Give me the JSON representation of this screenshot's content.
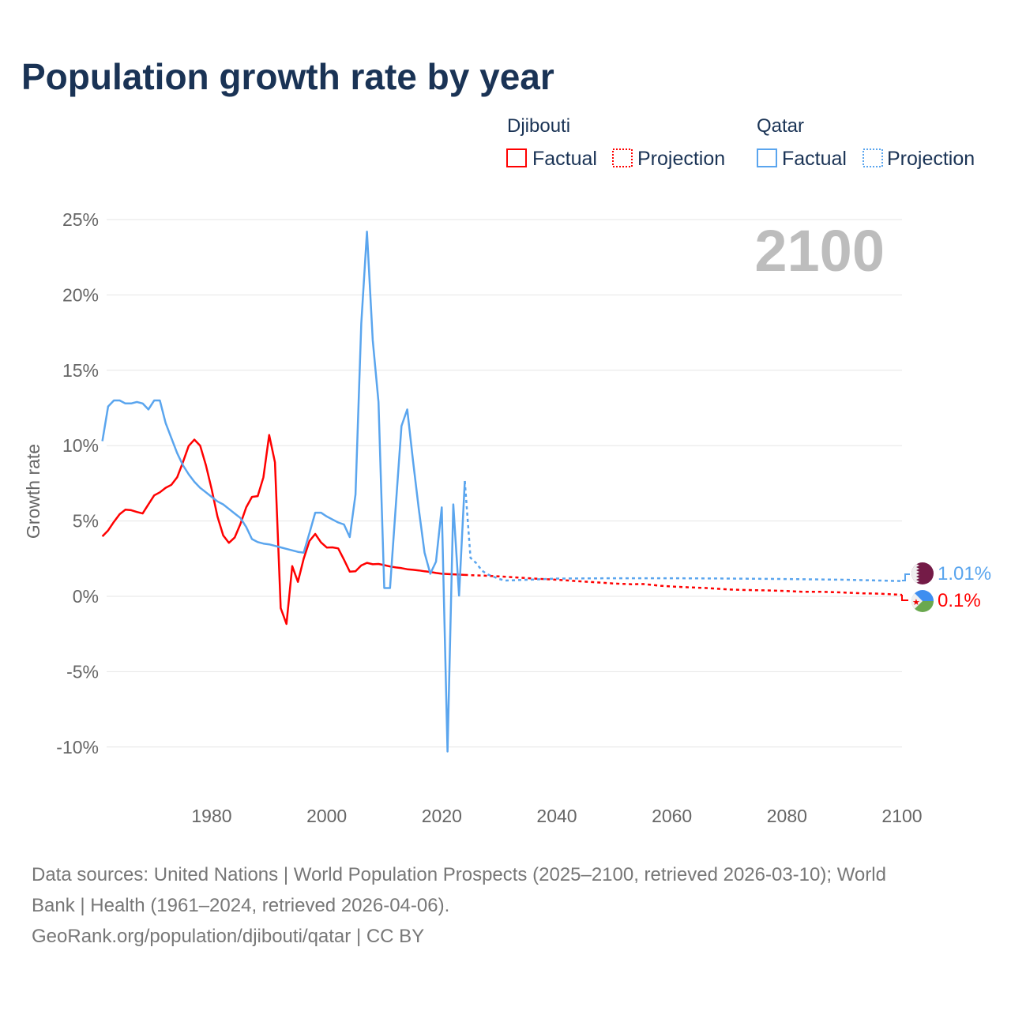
{
  "colors": {
    "djibouti": "#ff0000",
    "qatar": "#5aa5ee",
    "title": "#1a3355",
    "axis_text": "#666666",
    "year_watermark": "#bdbdbd",
    "footer": "#777777",
    "grid": "#e6e6e6"
  },
  "chart_data": {
    "type": "line",
    "title": "Population growth rate by year",
    "ylabel": "Growth rate",
    "xlabel": "",
    "xlim": [
      1961,
      2100
    ],
    "ylim": [
      -12,
      27
    ],
    "x_ticks": [
      1980,
      2000,
      2020,
      2040,
      2060,
      2080,
      2100
    ],
    "x_tick_labels": [
      "1980",
      "2000",
      "2020",
      "2040",
      "2060",
      "2080",
      "2100"
    ],
    "y_ticks": [
      25,
      20,
      15,
      10,
      5,
      0,
      -5,
      -10
    ],
    "y_tick_labels": [
      "25%",
      "20%",
      "15%",
      "10%",
      "5%",
      "0%",
      "-5%",
      "-10%"
    ],
    "grid": true,
    "current_year_label": "2100",
    "legend": {
      "placement": "top-right",
      "groups": [
        {
          "name": "Djibouti",
          "items": [
            "Factual",
            "Projection"
          ]
        },
        {
          "name": "Qatar",
          "items": [
            "Factual",
            "Projection"
          ]
        }
      ]
    },
    "series": [
      {
        "name": "Djibouti Factual",
        "country": "Djibouti",
        "style": "solid",
        "color_key": "djibouti",
        "x": [
          1961,
          1962,
          1963,
          1964,
          1965,
          1966,
          1967,
          1968,
          1969,
          1970,
          1971,
          1972,
          1973,
          1974,
          1975,
          1976,
          1977,
          1978,
          1979,
          1980,
          1981,
          1982,
          1983,
          1984,
          1985,
          1986,
          1987,
          1988,
          1989,
          1990,
          1991,
          1992,
          1993,
          1994,
          1995,
          1996,
          1997,
          1998,
          1999,
          2000,
          2001,
          2002,
          2003,
          2004,
          2005,
          2006,
          2007,
          2008,
          2009,
          2010,
          2011,
          2012,
          2013,
          2014,
          2015,
          2016,
          2017,
          2018,
          2019,
          2020,
          2021,
          2022,
          2023,
          2024
        ],
        "y": [
          3.98,
          4.37,
          4.94,
          5.45,
          5.75,
          5.72,
          5.6,
          5.5,
          6.1,
          6.7,
          6.9,
          7.2,
          7.4,
          7.9,
          8.9,
          9.98,
          10.4,
          10.0,
          8.7,
          7.1,
          5.3,
          4.04,
          3.55,
          3.9,
          4.8,
          5.9,
          6.6,
          6.65,
          7.9,
          10.7,
          8.9,
          -0.78,
          -1.83,
          2.0,
          0.96,
          2.5,
          3.67,
          4.14,
          3.58,
          3.24,
          3.25,
          3.18,
          2.43,
          1.64,
          1.66,
          2.05,
          2.22,
          2.13,
          2.15,
          2.07,
          1.98,
          1.92,
          1.87,
          1.8,
          1.76,
          1.72,
          1.66,
          1.62,
          1.55,
          1.5,
          1.48,
          1.46,
          1.44,
          1.42
        ]
      },
      {
        "name": "Djibouti Projection",
        "country": "Djibouti",
        "style": "dotted",
        "color_key": "djibouti",
        "x": [
          2024,
          2027,
          2030,
          2033,
          2036,
          2040,
          2043,
          2046,
          2050,
          2053,
          2055,
          2058,
          2060,
          2063,
          2066,
          2070,
          2073,
          2076,
          2080,
          2083,
          2086,
          2090,
          2093,
          2096,
          2100
        ],
        "y": [
          1.42,
          1.38,
          1.32,
          1.25,
          1.18,
          1.1,
          1.02,
          0.95,
          0.85,
          0.8,
          0.82,
          0.7,
          0.65,
          0.6,
          0.55,
          0.45,
          0.42,
          0.4,
          0.35,
          0.3,
          0.3,
          0.25,
          0.2,
          0.18,
          0.1
        ],
        "end_label": "0.1%"
      },
      {
        "name": "Qatar Factual",
        "country": "Qatar",
        "style": "solid",
        "color_key": "qatar",
        "x": [
          1961,
          1962,
          1963,
          1964,
          1965,
          1966,
          1967,
          1968,
          1969,
          1970,
          1971,
          1972,
          1973,
          1974,
          1975,
          1976,
          1977,
          1978,
          1979,
          1980,
          1981,
          1982,
          1983,
          1984,
          1985,
          1986,
          1987,
          1988,
          1989,
          1990,
          1991,
          1992,
          1993,
          1994,
          1995,
          1996,
          1997,
          1998,
          1999,
          2000,
          2001,
          2002,
          2003,
          2004,
          2005,
          2006,
          2007,
          2008,
          2009,
          2010,
          2011,
          2012,
          2013,
          2014,
          2015,
          2016,
          2017,
          2018,
          2019,
          2020,
          2021,
          2022,
          2023,
          2024
        ],
        "y": [
          10.3,
          12.6,
          13.0,
          13.0,
          12.8,
          12.8,
          12.9,
          12.8,
          12.4,
          13.0,
          13.0,
          11.5,
          10.5,
          9.5,
          8.7,
          8.1,
          7.6,
          7.2,
          6.9,
          6.6,
          6.3,
          6.1,
          5.8,
          5.5,
          5.2,
          4.6,
          3.8,
          3.6,
          3.5,
          3.45,
          3.35,
          3.25,
          3.15,
          3.05,
          2.95,
          2.9,
          4.2,
          5.55,
          5.55,
          5.3,
          5.1,
          4.9,
          4.77,
          3.93,
          6.76,
          18.1,
          24.2,
          17.0,
          12.9,
          0.55,
          0.55,
          6.0,
          11.3,
          12.4,
          9.0,
          5.8,
          2.9,
          1.5,
          2.3,
          5.9,
          -10.3,
          6.1,
          0.05,
          7.65
        ]
      },
      {
        "name": "Qatar Projection",
        "country": "Qatar",
        "style": "dotted",
        "color_key": "qatar",
        "x": [
          2024,
          2025,
          2026,
          2027,
          2028,
          2029,
          2030,
          2031,
          2035,
          2040,
          2050,
          2060,
          2070,
          2080,
          2090,
          2095,
          2100
        ],
        "y": [
          7.65,
          2.55,
          2.2,
          1.7,
          1.45,
          1.3,
          1.15,
          1.05,
          1.1,
          1.18,
          1.2,
          1.2,
          1.18,
          1.15,
          1.1,
          1.06,
          1.01
        ],
        "end_label": "1.01%"
      }
    ]
  },
  "footer": {
    "line1": "Data sources: United Nations | World Population Prospects (2025–2100, retrieved 2026-03-10); World",
    "line2": "Bank | Health (1961–2024, retrieved 2026-04-06).",
    "line3": "GeoRank.org/population/djibouti/qatar | CC BY"
  }
}
